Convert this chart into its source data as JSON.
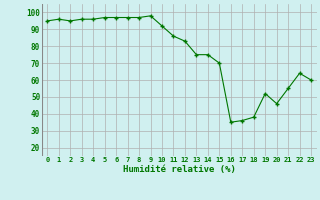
{
  "x": [
    0,
    1,
    2,
    3,
    4,
    5,
    6,
    7,
    8,
    9,
    10,
    11,
    12,
    13,
    14,
    15,
    16,
    17,
    18,
    19,
    20,
    21,
    22,
    23
  ],
  "y": [
    95,
    96,
    95,
    96,
    96,
    97,
    97,
    97,
    97,
    98,
    92,
    86,
    83,
    75,
    75,
    70,
    35,
    36,
    38,
    52,
    46,
    55,
    64,
    60
  ],
  "line_color": "#007700",
  "marker": "+",
  "marker_size": 3,
  "marker_lw": 1.0,
  "bg_color": "#d0f0f0",
  "grid_color": "#b0b0b0",
  "xlabel": "Humidité relative (%)",
  "xlabel_color": "#007700",
  "ylabel_ticks": [
    20,
    30,
    40,
    50,
    60,
    70,
    80,
    90,
    100
  ],
  "xlim": [
    -0.5,
    23.5
  ],
  "ylim": [
    15,
    105
  ]
}
